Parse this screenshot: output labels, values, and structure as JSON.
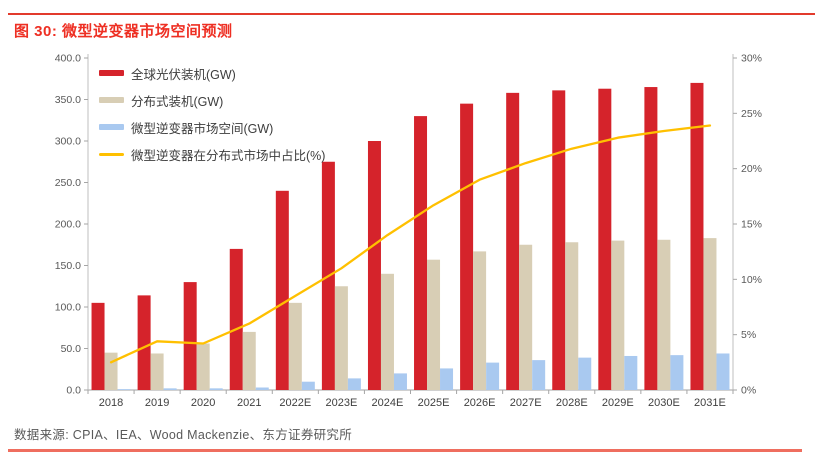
{
  "page": {
    "title": "图 30: 微型逆变器市场空间预测",
    "source": "数据来源: CPIA、IEA、Wood Mackenzie、东方证券研究所",
    "accent_title_red": "#ee2f23",
    "top_rule_color": "#e23a2c",
    "bottom_rule_color": "#ef6e5f"
  },
  "chart_data": {
    "type": "bar",
    "subtype": "grouped-bars-with-line-overlay",
    "title": "微型逆变器市场空间预测",
    "categories": [
      "2018",
      "2019",
      "2020",
      "2021",
      "2022E",
      "2023E",
      "2024E",
      "2025E",
      "2026E",
      "2027E",
      "2028E",
      "2029E",
      "2030E",
      "2031E"
    ],
    "series": [
      {
        "name": "全球光伏装机(GW)",
        "type": "bar",
        "axis": "left",
        "color": "#d5232b",
        "values": [
          105,
          114,
          130,
          170,
          240,
          275,
          300,
          330,
          345,
          358,
          361,
          363,
          365,
          370
        ]
      },
      {
        "name": "分布式装机(GW)",
        "type": "bar",
        "axis": "left",
        "color": "#d8ceb5",
        "values": [
          45,
          44,
          56,
          70,
          105,
          125,
          140,
          157,
          167,
          175,
          178,
          180,
          181,
          183
        ]
      },
      {
        "name": "微型逆变器市场空间(GW)",
        "type": "bar",
        "axis": "left",
        "color": "#a9c9f0",
        "values": [
          1,
          2,
          2,
          3,
          10,
          14,
          20,
          26,
          33,
          36,
          39,
          41,
          42,
          44
        ]
      },
      {
        "name": "微型逆变器在分布式市场中占比(%)",
        "type": "line",
        "axis": "right",
        "color": "#ffc000",
        "values": [
          2.5,
          4.4,
          4.2,
          6.0,
          8.5,
          11.0,
          14.0,
          16.7,
          19.0,
          20.5,
          21.8,
          22.8,
          23.4,
          23.9
        ]
      }
    ],
    "left_axis": {
      "min": 0,
      "max": 400,
      "step": 50,
      "tick_labels": [
        "400.0",
        "350.0",
        "300.0",
        "250.0",
        "200.0",
        "150.0",
        "100.0",
        "50.0",
        "0.0"
      ]
    },
    "right_axis": {
      "min": 0,
      "max": 30,
      "step": 5,
      "tick_labels": [
        "30%",
        "25%",
        "20%",
        "15%",
        "10%",
        "5%",
        "0%"
      ]
    },
    "grid": false,
    "legend_position": "top-left"
  }
}
